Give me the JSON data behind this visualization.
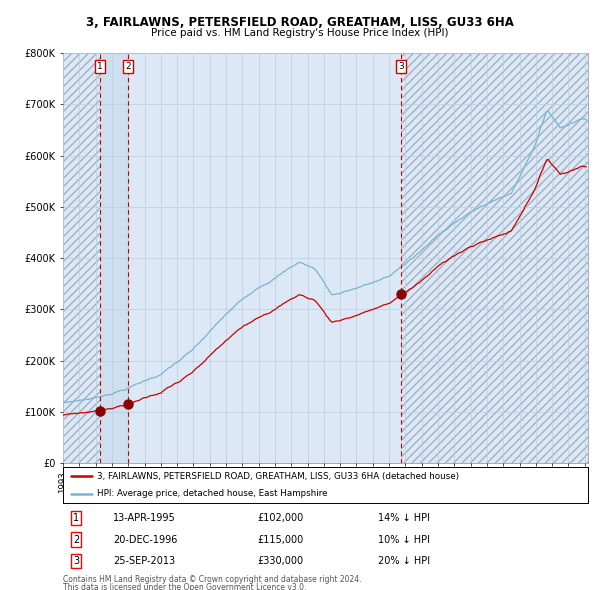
{
  "title1": "3, FAIRLAWNS, PETERSFIELD ROAD, GREATHAM, LISS, GU33 6HA",
  "title2": "Price paid vs. HM Land Registry's House Price Index (HPI)",
  "legend_line1": "3, FAIRLAWNS, PETERSFIELD ROAD, GREATHAM, LISS, GU33 6HA (detached house)",
  "legend_line2": "HPI: Average price, detached house, East Hampshire",
  "sale1_date": "13-APR-1995",
  "sale1_price": 102000,
  "sale1_hpi_pct": "14% ↓ HPI",
  "sale2_date": "20-DEC-1996",
  "sale2_price": 115000,
  "sale2_hpi_pct": "10% ↓ HPI",
  "sale3_date": "25-SEP-2013",
  "sale3_price": 330000,
  "sale3_hpi_pct": "20% ↓ HPI",
  "footer1": "Contains HM Land Registry data © Crown copyright and database right 2024.",
  "footer2": "This data is licensed under the Open Government Licence v3.0.",
  "hpi_color": "#7ab3d4",
  "price_color": "#cc0000",
  "dot_color": "#8b0000",
  "bg_color": "#dce8f5",
  "grid_color": "#b8cfe0",
  "vline_color": "#cc0000",
  "sale1_x": 1995.28,
  "sale2_x": 1996.97,
  "sale3_x": 2013.73,
  "ylim_max": 800000,
  "x_min": 1993.0,
  "x_max": 2025.2
}
